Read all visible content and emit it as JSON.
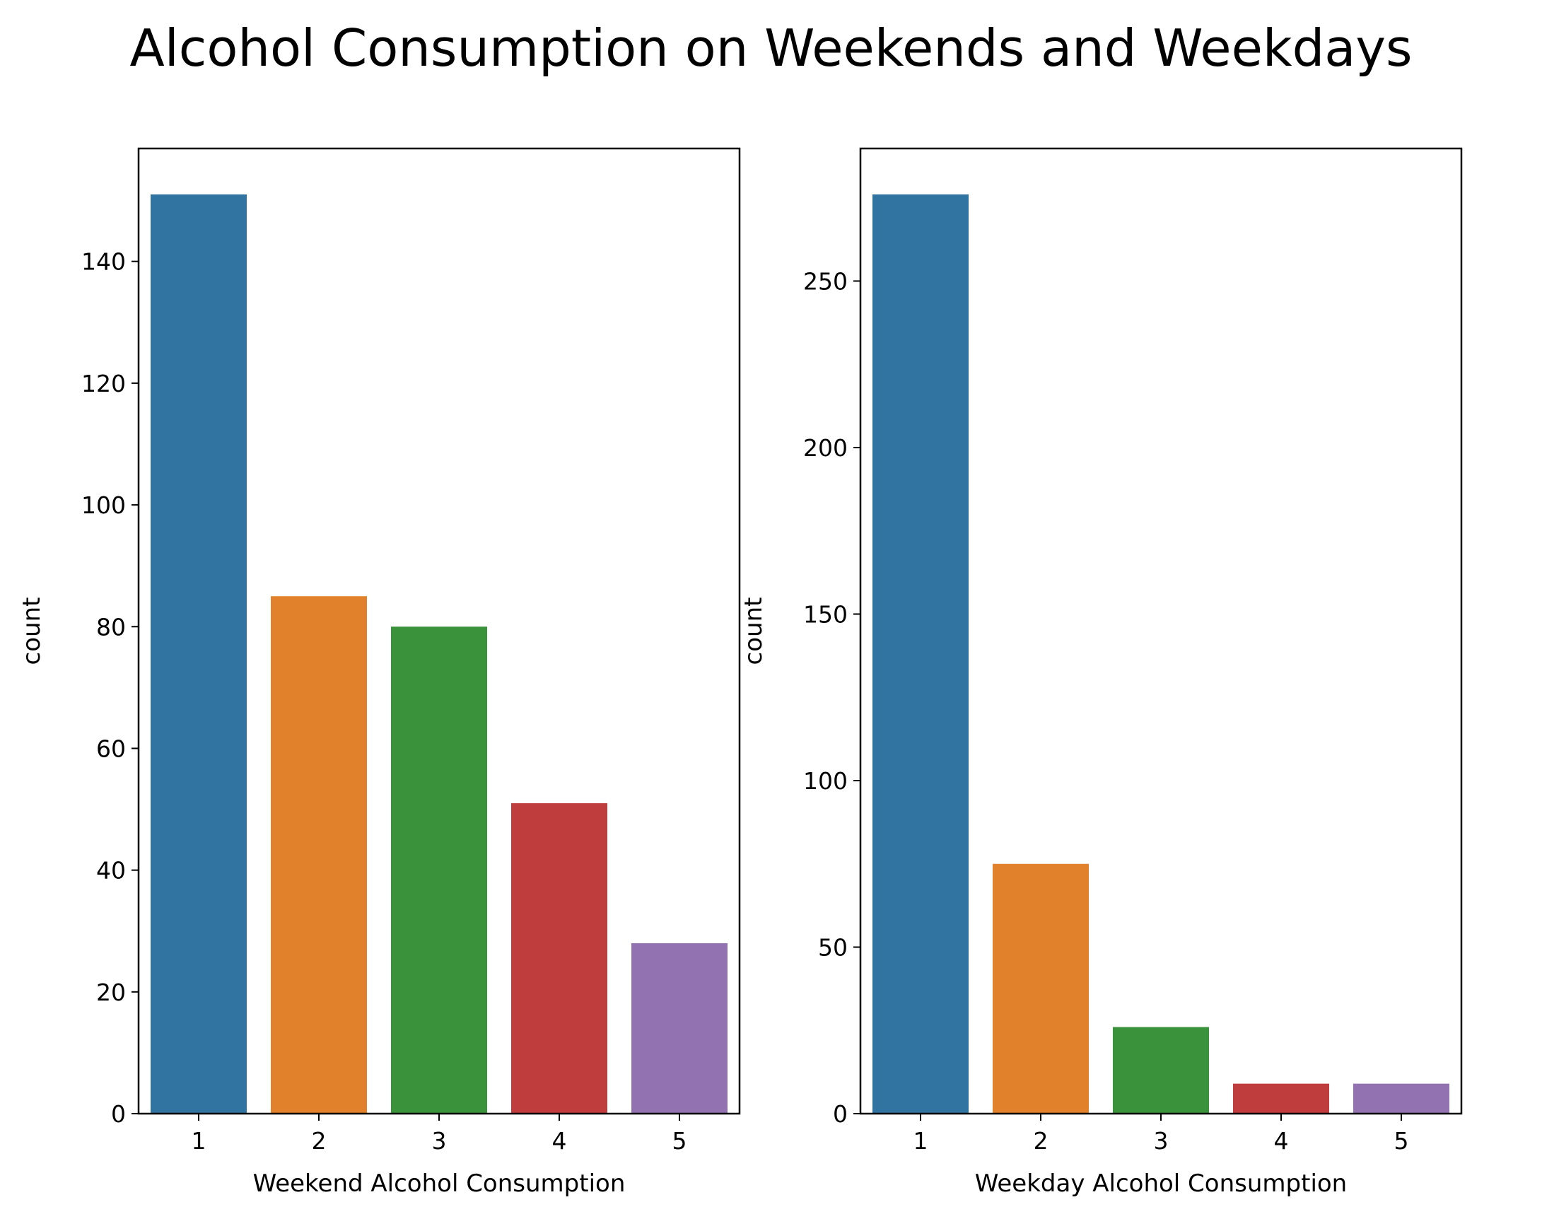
{
  "figure": {
    "title": "Alcohol Consumption on Weekends and Weekdays"
  },
  "chart_data": [
    {
      "type": "bar",
      "categories": [
        "1",
        "2",
        "3",
        "4",
        "5"
      ],
      "values": [
        151,
        85,
        80,
        51,
        28
      ],
      "colors": [
        "#3274a1",
        "#e1812c",
        "#3a923a",
        "#c03d3e",
        "#9372b2"
      ],
      "xlabel": "Weekend Alcohol Consumption",
      "ylabel": "count",
      "yticks": [
        0,
        20,
        40,
        60,
        80,
        100,
        120,
        140
      ],
      "ylim": [
        0,
        158.55
      ],
      "grid": false
    },
    {
      "type": "bar",
      "categories": [
        "1",
        "2",
        "3",
        "4",
        "5"
      ],
      "values": [
        276,
        75,
        26,
        9,
        9
      ],
      "colors": [
        "#3274a1",
        "#e1812c",
        "#3a923a",
        "#c03d3e",
        "#9372b2"
      ],
      "xlabel": "Weekday Alcohol Consumption",
      "ylabel": "count",
      "yticks": [
        0,
        50,
        100,
        150,
        200,
        250
      ],
      "ylim": [
        0,
        289.8
      ],
      "grid": false
    }
  ]
}
